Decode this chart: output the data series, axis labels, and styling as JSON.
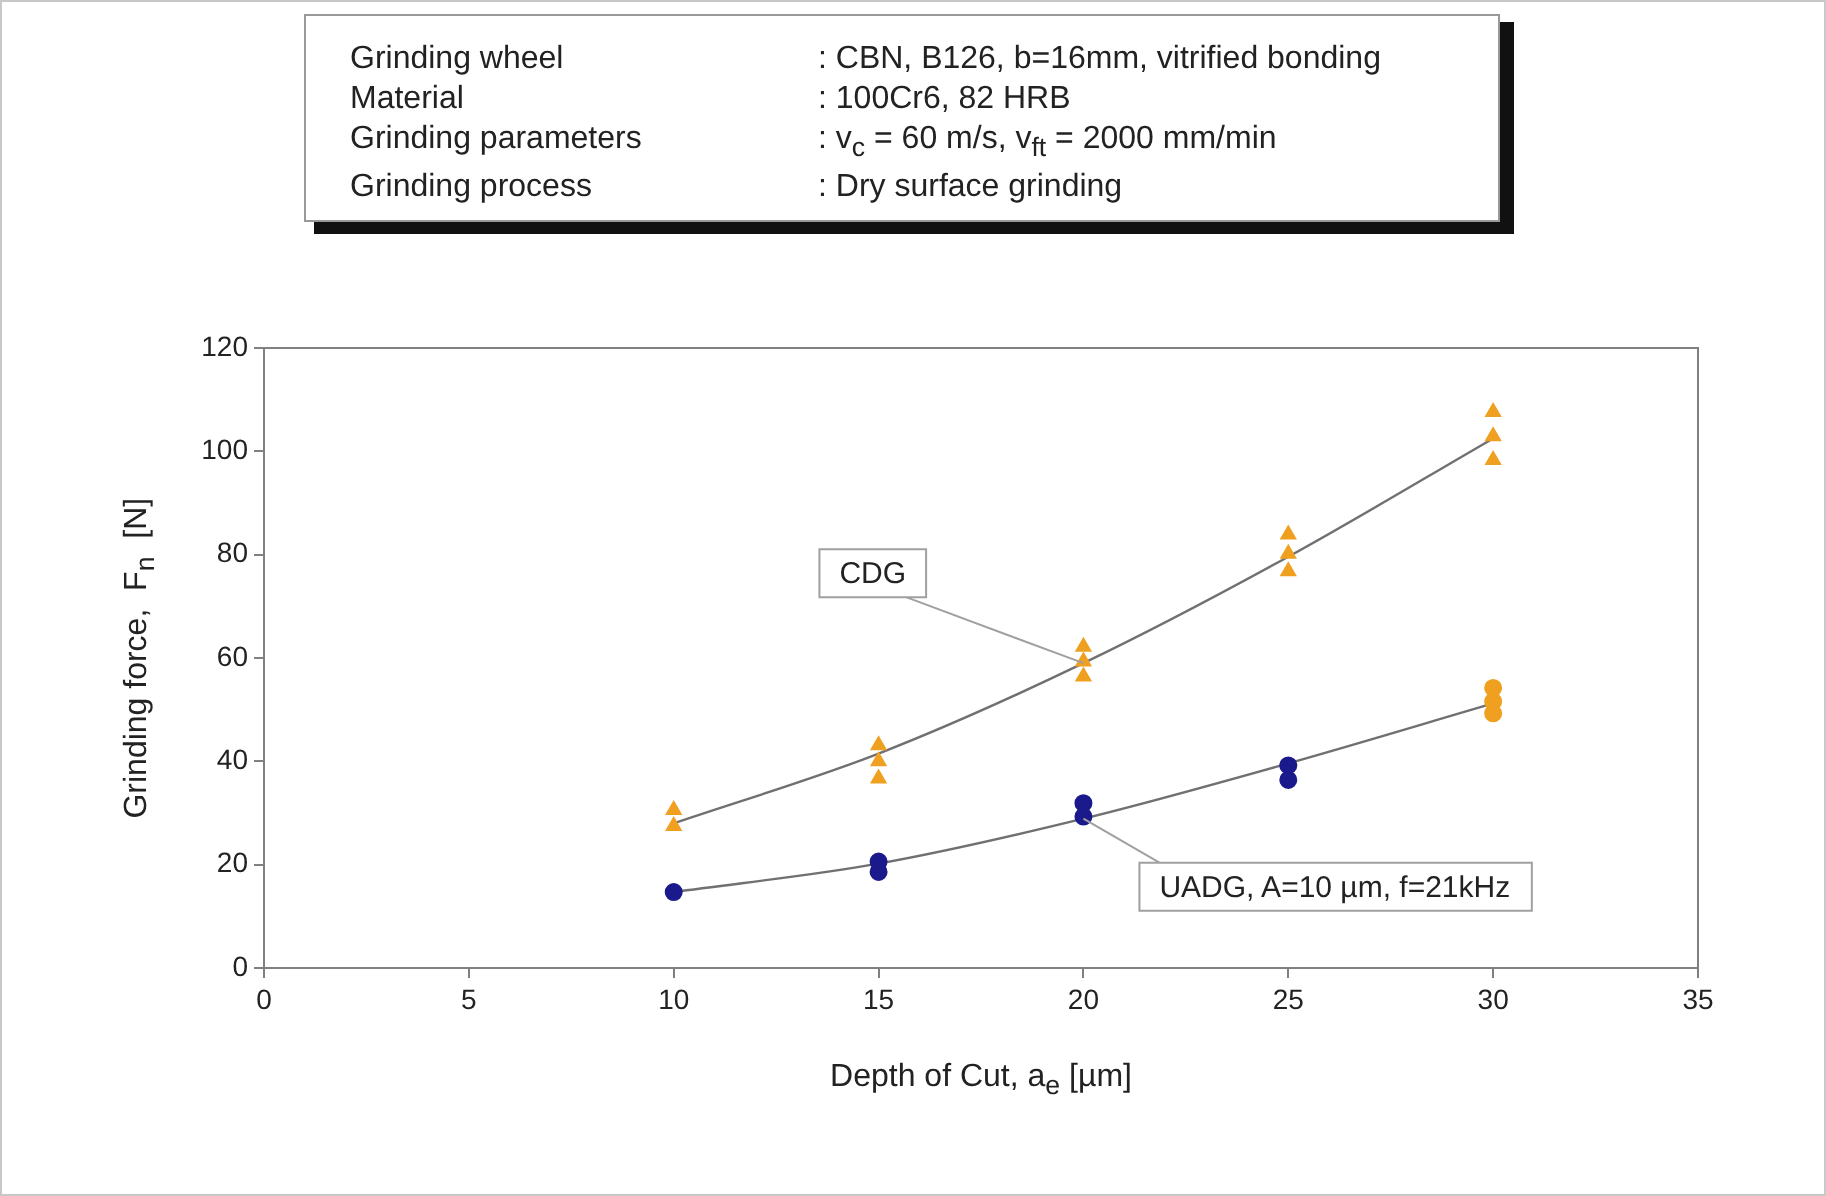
{
  "chart_data": {
    "type": "scatter",
    "xlabel": "Depth of Cut, a$_{e}$ [µm]",
    "ylabel": "Grinding force,  F$_{n}$  [N]",
    "annotations": [
      "Grinding wheel\t: CBN, B126, b=16mm, vitrified bonding",
      "Material\t: 100Cr6, 82 HRB",
      "Grinding parameters\t: v$_{c}$ = 60 m/s, v$_{ft}$ = 2000 mm/min",
      "Grinding process\t: Dry surface grinding"
    ],
    "xlim": [
      0,
      35
    ],
    "xticks": [
      0,
      5,
      10,
      15,
      20,
      25,
      30,
      35
    ],
    "ylim": [
      0,
      120
    ],
    "yticks": [
      0,
      20,
      40,
      60,
      80,
      100,
      120
    ],
    "series": [
      {
        "name": "CDG",
        "color": "#f0a020",
        "marker": "triangle",
        "x": [
          10,
          10,
          15,
          15,
          15,
          20,
          20,
          20,
          25,
          25,
          25,
          30,
          30,
          30
        ],
        "values": [
          30.6,
          27.5,
          43.1,
          40,
          36.7,
          62.2,
          59.3,
          56.4,
          83.9,
          80.2,
          76.8,
          107.6,
          102.9,
          98.3
        ]
      },
      {
        "name": "UADG, A=10 µm, f=21kHz",
        "color": "#1a1a8c",
        "marker": "circle",
        "x": [
          10,
          15,
          15,
          20,
          20,
          25,
          25,
          30,
          30,
          30
        ],
        "values": [
          14.7,
          20.6,
          18.6,
          31.9,
          29.3,
          39.2,
          36.4,
          54.2,
          51.6,
          49.3
        ],
        "colors": [
          "#1a1a8c",
          "#1a1a8c",
          "#1a1a8c",
          "#1a1a8c",
          "#1a1a8c",
          "#1a1a8c",
          "#1a1a8c",
          "#f0a020",
          "#f0a020",
          "#f0a020"
        ]
      },
      {
        "type": "line",
        "color": "#707070",
        "marker": "none",
        "x": [
          10,
          15,
          20,
          25,
          30
        ],
        "values": [
          28,
          41.5,
          59,
          79.6,
          102.5
        ]
      },
      {
        "type": "line",
        "color": "#707070",
        "marker": "none",
        "x": [
          10,
          15,
          20,
          25,
          30
        ],
        "values": [
          14.7,
          20.2,
          28.9,
          39.6,
          51.2
        ]
      }
    ]
  }
}
